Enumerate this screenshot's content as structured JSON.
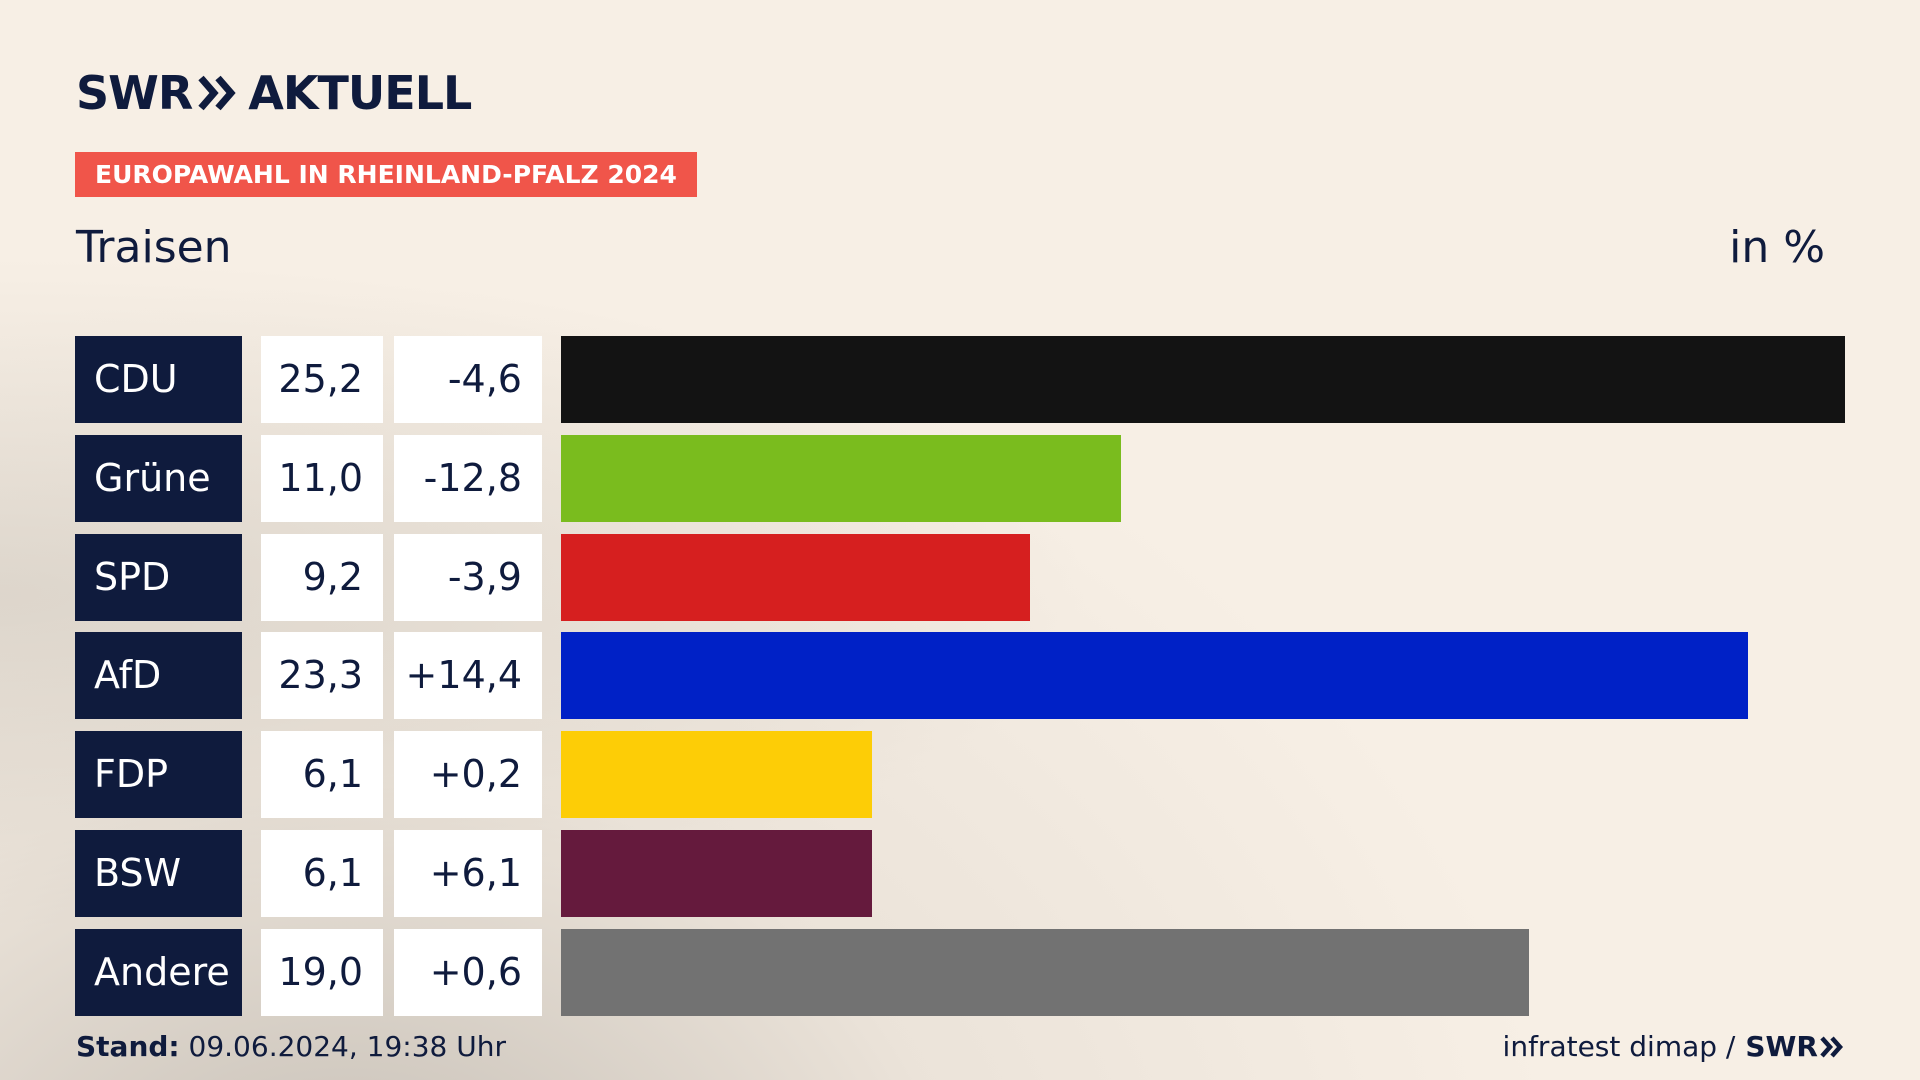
{
  "header": {
    "logo_left": "SWR",
    "logo_right": "AKTUELL",
    "badge": "EUROPAWAHL IN RHEINLAND-PFALZ 2024",
    "region": "Traisen",
    "unit": "in %"
  },
  "colors": {
    "navy": "#0f1b3d",
    "badge": "#f0554a",
    "background": "#f7efe5"
  },
  "chart_data": {
    "type": "bar",
    "orientation": "horizontal",
    "categories": [
      "CDU",
      "Grüne",
      "SPD",
      "AfD",
      "FDP",
      "BSW",
      "Andere"
    ],
    "values": [
      25.2,
      11.0,
      9.2,
      23.3,
      6.1,
      6.1,
      19.0
    ],
    "value_labels": [
      "25,2",
      "11,0",
      "9,2",
      "23,3",
      "6,1",
      "6,1",
      "19,0"
    ],
    "changes": [
      -4.6,
      -12.8,
      -3.9,
      14.4,
      0.2,
      6.1,
      0.6
    ],
    "change_labels": [
      "-4,6",
      "-12,8",
      "-3,9",
      "+14,4",
      "+0,2",
      "+6,1",
      "+0,6"
    ],
    "colors": [
      "#131313",
      "#7abc1e",
      "#d61f1f",
      "#0021c6",
      "#fdcd06",
      "#651a3d",
      "#727272"
    ],
    "xlim": [
      0,
      25.2
    ],
    "grid": false
  },
  "footer": {
    "stand_label": "Stand:",
    "stand_value": "09.06.2024, 19:38 Uhr",
    "source": "infratest dimap /",
    "brand": "SWR"
  }
}
